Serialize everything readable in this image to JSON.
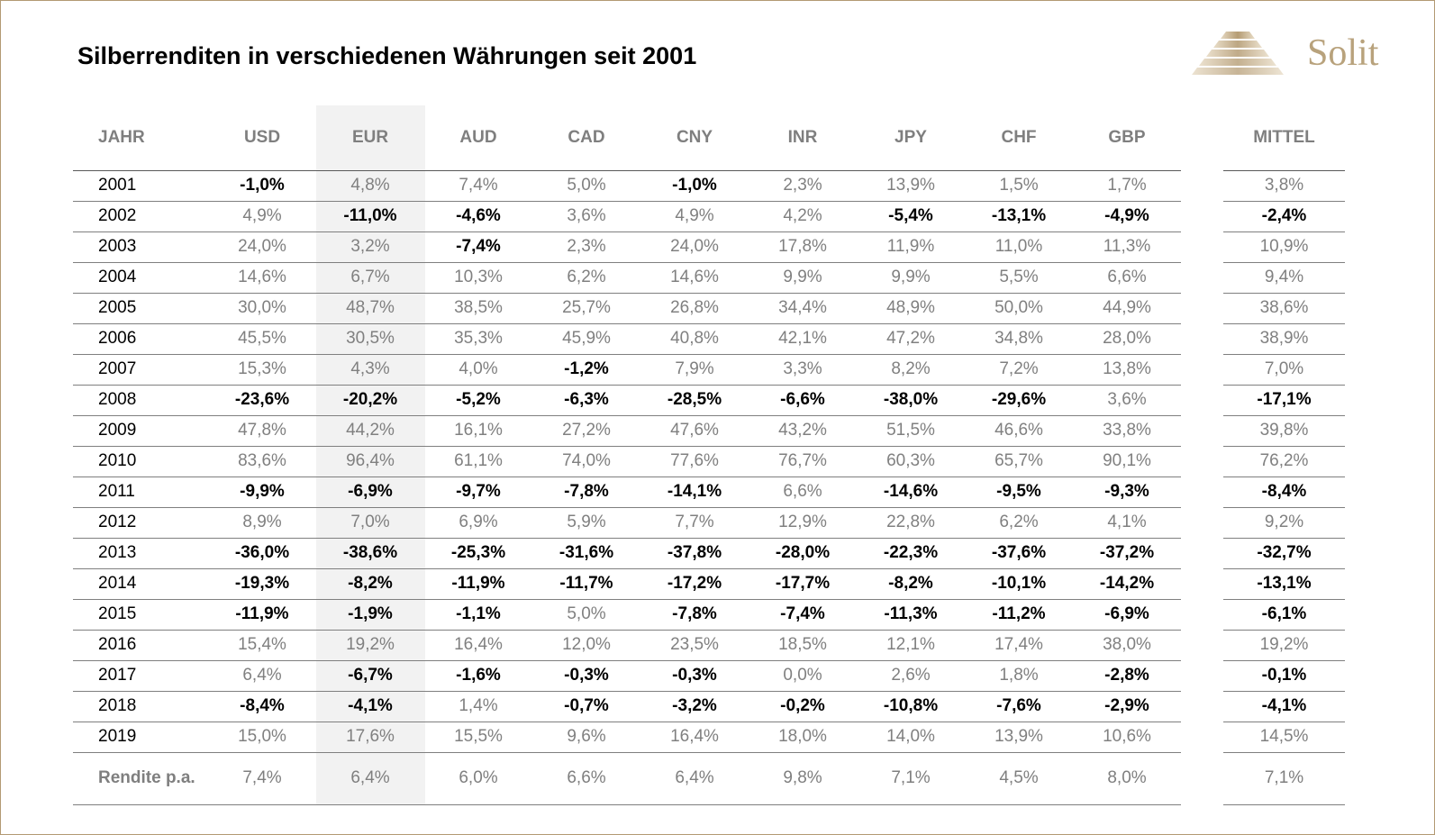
{
  "title": "Silberrenditen in verschiedenen Währungen seit 2001",
  "logo": {
    "text": "Solit",
    "icon": "stepped-pyramid-icon",
    "color": "#b8a27c"
  },
  "table": {
    "headers": [
      "JAHR",
      "USD",
      "EUR",
      "AUD",
      "CAD",
      "CNY",
      "INR",
      "JPY",
      "CHF",
      "GBP",
      "MITTEL"
    ],
    "highlight_column": "EUR",
    "rows": [
      {
        "year": "2001",
        "values": [
          "-1,0%",
          "4,8%",
          "7,4%",
          "5,0%",
          "-1,0%",
          "2,3%",
          "13,9%",
          "1,5%",
          "1,7%",
          "3,8%"
        ]
      },
      {
        "year": "2002",
        "values": [
          "4,9%",
          "-11,0%",
          "-4,6%",
          "3,6%",
          "4,9%",
          "4,2%",
          "-5,4%",
          "-13,1%",
          "-4,9%",
          "-2,4%"
        ]
      },
      {
        "year": "2003",
        "values": [
          "24,0%",
          "3,2%",
          "-7,4%",
          "2,3%",
          "24,0%",
          "17,8%",
          "11,9%",
          "11,0%",
          "11,3%",
          "10,9%"
        ]
      },
      {
        "year": "2004",
        "values": [
          "14,6%",
          "6,7%",
          "10,3%",
          "6,2%",
          "14,6%",
          "9,9%",
          "9,9%",
          "5,5%",
          "6,6%",
          "9,4%"
        ]
      },
      {
        "year": "2005",
        "values": [
          "30,0%",
          "48,7%",
          "38,5%",
          "25,7%",
          "26,8%",
          "34,4%",
          "48,9%",
          "50,0%",
          "44,9%",
          "38,6%"
        ]
      },
      {
        "year": "2006",
        "values": [
          "45,5%",
          "30,5%",
          "35,3%",
          "45,9%",
          "40,8%",
          "42,1%",
          "47,2%",
          "34,8%",
          "28,0%",
          "38,9%"
        ]
      },
      {
        "year": "2007",
        "values": [
          "15,3%",
          "4,3%",
          "4,0%",
          "-1,2%",
          "7,9%",
          "3,3%",
          "8,2%",
          "7,2%",
          "13,8%",
          "7,0%"
        ]
      },
      {
        "year": "2008",
        "values": [
          "-23,6%",
          "-20,2%",
          "-5,2%",
          "-6,3%",
          "-28,5%",
          "-6,6%",
          "-38,0%",
          "-29,6%",
          "3,6%",
          "-17,1%"
        ]
      },
      {
        "year": "2009",
        "values": [
          "47,8%",
          "44,2%",
          "16,1%",
          "27,2%",
          "47,6%",
          "43,2%",
          "51,5%",
          "46,6%",
          "33,8%",
          "39,8%"
        ]
      },
      {
        "year": "2010",
        "values": [
          "83,6%",
          "96,4%",
          "61,1%",
          "74,0%",
          "77,6%",
          "76,7%",
          "60,3%",
          "65,7%",
          "90,1%",
          "76,2%"
        ]
      },
      {
        "year": "2011",
        "values": [
          "-9,9%",
          "-6,9%",
          "-9,7%",
          "-7,8%",
          "-14,1%",
          "6,6%",
          "-14,6%",
          "-9,5%",
          "-9,3%",
          "-8,4%"
        ]
      },
      {
        "year": "2012",
        "values": [
          "8,9%",
          "7,0%",
          "6,9%",
          "5,9%",
          "7,7%",
          "12,9%",
          "22,8%",
          "6,2%",
          "4,1%",
          "9,2%"
        ]
      },
      {
        "year": "2013",
        "values": [
          "-36,0%",
          "-38,6%",
          "-25,3%",
          "-31,6%",
          "-37,8%",
          "-28,0%",
          "-22,3%",
          "-37,6%",
          "-37,2%",
          "-32,7%"
        ]
      },
      {
        "year": "2014",
        "values": [
          "-19,3%",
          "-8,2%",
          "-11,9%",
          "-11,7%",
          "-17,2%",
          "-17,7%",
          "-8,2%",
          "-10,1%",
          "-14,2%",
          "-13,1%"
        ]
      },
      {
        "year": "2015",
        "values": [
          "-11,9%",
          "-1,9%",
          "-1,1%",
          "5,0%",
          "-7,8%",
          "-7,4%",
          "-11,3%",
          "-11,2%",
          "-6,9%",
          "-6,1%"
        ]
      },
      {
        "year": "2016",
        "values": [
          "15,4%",
          "19,2%",
          "16,4%",
          "12,0%",
          "23,5%",
          "18,5%",
          "12,1%",
          "17,4%",
          "38,0%",
          "19,2%"
        ]
      },
      {
        "year": "2017",
        "values": [
          "6,4%",
          "-6,7%",
          "-1,6%",
          "-0,3%",
          "-0,3%",
          "0,0%",
          "2,6%",
          "1,8%",
          "-2,8%",
          "-0,1%"
        ]
      },
      {
        "year": "2018",
        "values": [
          "-8,4%",
          "-4,1%",
          "1,4%",
          "-0,7%",
          "-3,2%",
          "-0,2%",
          "-10,8%",
          "-7,6%",
          "-2,9%",
          "-4,1%"
        ]
      },
      {
        "year": "2019",
        "values": [
          "15,0%",
          "17,6%",
          "15,5%",
          "9,6%",
          "16,4%",
          "18,0%",
          "14,0%",
          "13,9%",
          "10,6%",
          "14,5%"
        ]
      }
    ],
    "footer": {
      "label": "Rendite p.a.",
      "values": [
        "7,4%",
        "6,4%",
        "6,0%",
        "6,6%",
        "6,4%",
        "9,8%",
        "7,1%",
        "4,5%",
        "8,0%",
        "7,1%"
      ]
    }
  },
  "colors": {
    "positive": "#808080",
    "negative": "#000000",
    "highlight_band": "#f2f2f2",
    "frame": "#b39a73"
  }
}
